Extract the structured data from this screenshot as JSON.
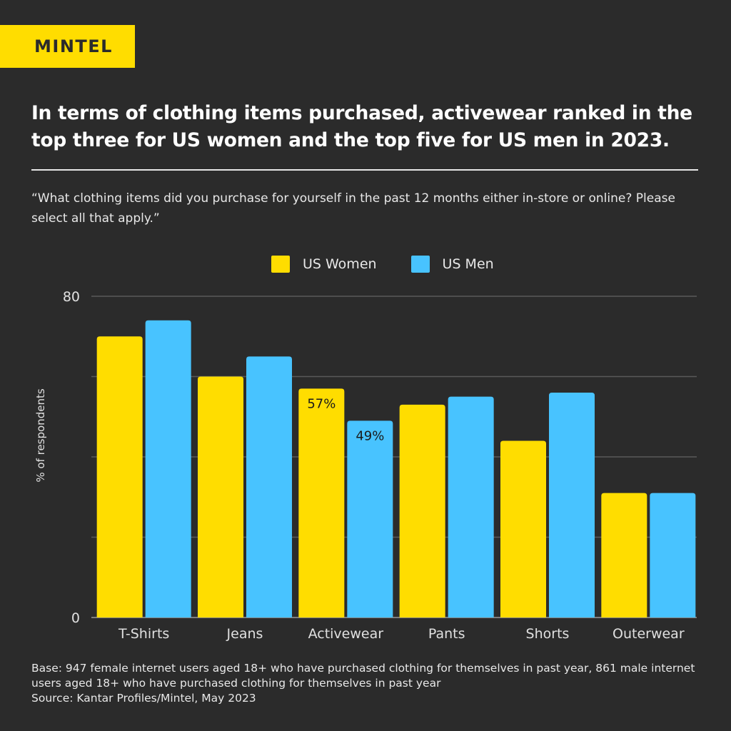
{
  "brand": {
    "logo_text": "MINTEL",
    "accent": "#ffdd00",
    "background": "#2b2b2b"
  },
  "header": {
    "title": "In terms of clothing items purchased, activewear ranked in the top three for US women and the top five for US men in 2023.",
    "question": "“What clothing items did you purchase for yourself in the past 12 months either in-store or online? Please select all that apply.”"
  },
  "footer": {
    "base": "Base: 947 female internet users aged 18+ who have purchased clothing for themselves in past year, 861 male internet users aged 18+ who have purchased clothing for themselves in past year",
    "source": "Source: Kantar Profiles/Mintel, May 2023"
  },
  "chart_data": {
    "type": "bar",
    "title": "",
    "xlabel": "",
    "ylabel": "% of respondents",
    "ylim": [
      0,
      80
    ],
    "yticks": [
      0,
      20,
      40,
      60,
      80
    ],
    "ytick_labels_shown": [
      "0",
      "80"
    ],
    "grid": true,
    "legend_position": "top-center",
    "categories": [
      "T-Shirts",
      "Jeans",
      "Activewear",
      "Pants",
      "Shorts",
      "Outerwear"
    ],
    "series": [
      {
        "name": "US Women",
        "color": "#ffdd00",
        "values": [
          70,
          60,
          57,
          53,
          44,
          31
        ]
      },
      {
        "name": "US Men",
        "color": "#48c3ff",
        "values": [
          74,
          65,
          49,
          55,
          56,
          31
        ]
      }
    ],
    "data_labels": [
      {
        "category": "Activewear",
        "series": "US Women",
        "text": "57%"
      },
      {
        "category": "Activewear",
        "series": "US Men",
        "text": "49%"
      }
    ]
  }
}
